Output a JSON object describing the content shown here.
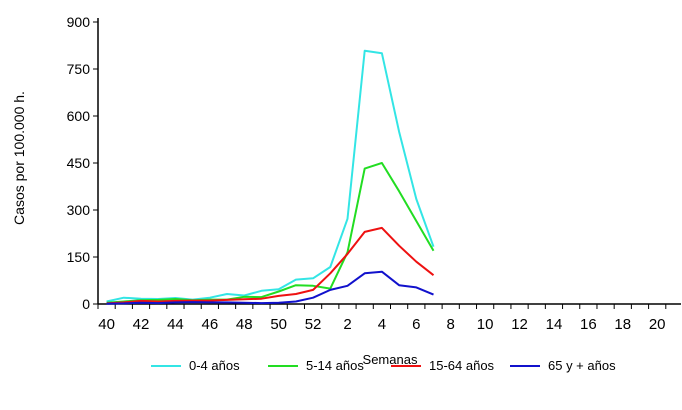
{
  "chart_data": {
    "type": "line",
    "title": "",
    "xlabel": "Semanas",
    "ylabel": "Casos por 100.000 h.",
    "ylim": [
      0,
      900
    ],
    "yticks": [
      "0",
      "150",
      "300",
      "450",
      "600",
      "750",
      "900"
    ],
    "xticks": [
      "40",
      "42",
      "44",
      "46",
      "48",
      "50",
      "52",
      "2",
      "4",
      "6",
      "8",
      "10",
      "12",
      "14",
      "16",
      "18",
      "20"
    ],
    "x": [
      "40",
      "41",
      "42",
      "43",
      "44",
      "45",
      "46",
      "47",
      "48",
      "49",
      "50",
      "51",
      "52",
      "1",
      "2",
      "3",
      "4",
      "5",
      "6",
      "7"
    ],
    "series": [
      {
        "name": "0-4 años",
        "color": "#33e5e5",
        "values": [
          8,
          20,
          17,
          16,
          19,
          14,
          20,
          32,
          27,
          42,
          47,
          78,
          82,
          118,
          272,
          808,
          800,
          550,
          335,
          183
        ]
      },
      {
        "name": "5-14 años",
        "color": "#22dd22",
        "values": [
          4,
          8,
          12,
          13,
          16,
          12,
          14,
          14,
          23,
          22,
          40,
          60,
          58,
          49,
          165,
          432,
          450,
          360,
          265,
          170
        ]
      },
      {
        "name": "15-64 años",
        "color": "#ee1111",
        "values": [
          2,
          5,
          10,
          8,
          10,
          11,
          11,
          13,
          15,
          17,
          26,
          32,
          45,
          98,
          160,
          230,
          243,
          186,
          135,
          92
        ]
      },
      {
        "name": "65 y + años",
        "color": "#1111cc",
        "values": [
          1,
          2,
          4,
          3,
          5,
          6,
          5,
          5,
          4,
          3,
          4,
          8,
          20,
          45,
          58,
          98,
          103,
          60,
          53,
          30
        ]
      }
    ],
    "grid": false,
    "legend_position": "bottom"
  }
}
